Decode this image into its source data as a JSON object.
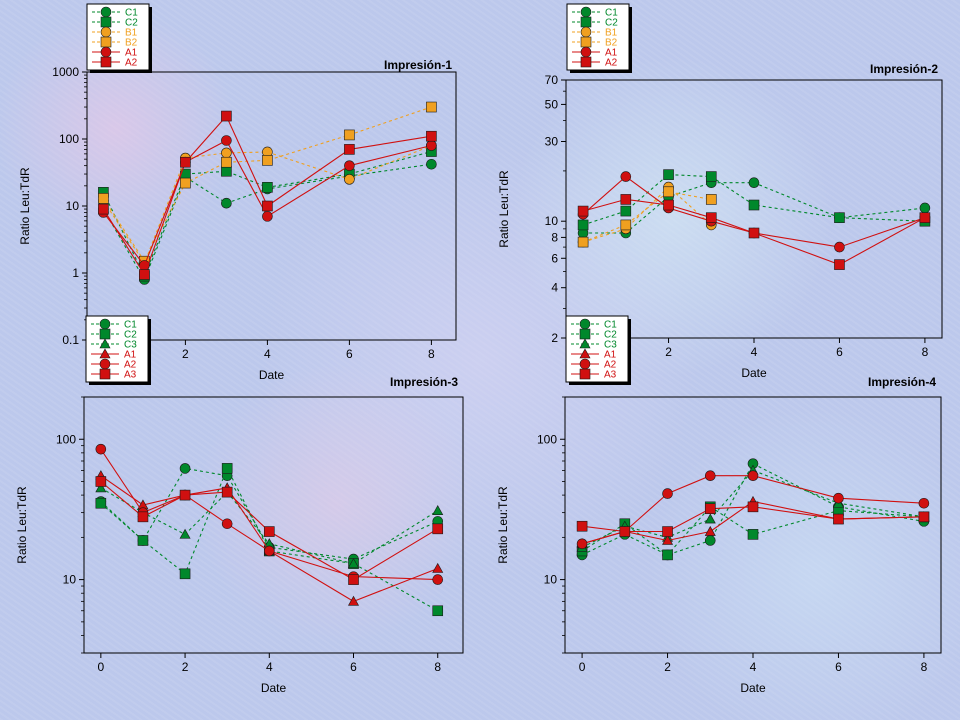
{
  "chart_data": [
    {
      "type": "line",
      "title": "Impresión-1",
      "xlabel": "Date",
      "ylabel": "Ratio Leu:TdR",
      "xlim": [
        -0.4,
        8.6
      ],
      "xticks": [
        0,
        2,
        4,
        6,
        8
      ],
      "ylim": [
        0.1,
        1000
      ],
      "yscale": "log",
      "yticks": [
        0.1,
        1,
        10,
        100,
        1000
      ],
      "ytick_labels": [
        "0.1",
        "1",
        "10",
        "100",
        "1000"
      ],
      "grid": false,
      "legend_position": "top-left, above plot",
      "series": [
        {
          "name": "C1",
          "color": "#00882b",
          "marker": "circle",
          "dash": true,
          "x": [
            0,
            1,
            2,
            3,
            4,
            6,
            8
          ],
          "y": [
            9,
            0.8,
            27,
            11,
            18,
            28,
            42
          ]
        },
        {
          "name": "C2",
          "color": "#00882b",
          "marker": "square",
          "dash": true,
          "x": [
            0,
            1,
            2,
            3,
            4,
            6,
            8
          ],
          "y": [
            16,
            0.9,
            30,
            33,
            19,
            30,
            65
          ]
        },
        {
          "name": "B1",
          "color": "#f0a020",
          "marker": "circle",
          "dash": true,
          "x": [
            0,
            1,
            2,
            3,
            4,
            6,
            8
          ],
          "y": [
            12,
            1.4,
            52,
            62,
            64,
            25,
            80
          ]
        },
        {
          "name": "B2",
          "color": "#f0a020",
          "marker": "square",
          "dash": true,
          "x": [
            0,
            1,
            2,
            3,
            4,
            6,
            8
          ],
          "y": [
            13,
            1.5,
            22,
            45,
            48,
            115,
            300
          ]
        },
        {
          "name": "A1",
          "color": "#d01010",
          "marker": "circle",
          "dash": false,
          "x": [
            0,
            1,
            2,
            3,
            4,
            6,
            8
          ],
          "y": [
            8,
            1.3,
            45,
            95,
            7,
            40,
            80
          ]
        },
        {
          "name": "A2",
          "color": "#d01010",
          "marker": "square",
          "dash": false,
          "x": [
            0,
            1,
            2,
            3,
            4,
            6,
            8
          ],
          "y": [
            9,
            0.95,
            45,
            220,
            10,
            70,
            110
          ]
        }
      ]
    },
    {
      "type": "line",
      "title": "Impresión-2",
      "xlabel": "Date",
      "ylabel": "Ratio Leu:TdR",
      "xlim": [
        -0.4,
        8.4
      ],
      "xticks": [
        0,
        2,
        4,
        6,
        8
      ],
      "ylim": [
        2,
        70
      ],
      "yscale": "log",
      "yticks": [
        2,
        4,
        6,
        8,
        10,
        30,
        50,
        70
      ],
      "ytick_labels": [
        "2",
        "4",
        "6",
        "8",
        "10",
        "30",
        "50",
        "70"
      ],
      "grid": false,
      "legend_position": "top-left, above plot",
      "series": [
        {
          "name": "C1",
          "color": "#00882b",
          "marker": "circle",
          "dash": true,
          "x": [
            0,
            1,
            2,
            3,
            4,
            6,
            8
          ],
          "y": [
            8.5,
            8.5,
            14,
            17,
            17,
            10.5,
            12
          ]
        },
        {
          "name": "C2",
          "color": "#00882b",
          "marker": "square",
          "dash": true,
          "x": [
            0,
            1,
            2,
            3,
            4,
            6,
            8
          ],
          "y": [
            9.5,
            11.5,
            19,
            18.5,
            12.5,
            10.5,
            10
          ]
        },
        {
          "name": "B1",
          "color": "#f0a020",
          "marker": "circle",
          "dash": true,
          "x": [
            0,
            1,
            2,
            3
          ],
          "y": [
            7.5,
            9,
            16,
            9.5
          ]
        },
        {
          "name": "B2",
          "color": "#f0a020",
          "marker": "square",
          "dash": true,
          "x": [
            0,
            1,
            2,
            3
          ],
          "y": [
            7.5,
            9.5,
            15,
            13.5
          ]
        },
        {
          "name": "A1",
          "color": "#d01010",
          "marker": "circle",
          "dash": false,
          "x": [
            0,
            1,
            2,
            3,
            4,
            6,
            8
          ],
          "y": [
            11,
            18.5,
            12,
            10,
            8.5,
            7,
            10.5
          ]
        },
        {
          "name": "A2",
          "color": "#d01010",
          "marker": "square",
          "dash": false,
          "x": [
            0,
            1,
            2,
            3,
            4,
            6,
            8
          ],
          "y": [
            11.5,
            13.5,
            12.5,
            10.5,
            8.5,
            5.5,
            10.5
          ]
        }
      ]
    },
    {
      "type": "line",
      "title": "Impresión-3",
      "xlabel": "Date",
      "ylabel": "Ratio Leu:TdR",
      "xlim": [
        -0.4,
        8.6
      ],
      "xticks": [
        0,
        2,
        4,
        6,
        8
      ],
      "ylim": [
        3,
        200
      ],
      "yscale": "log",
      "yticks": [
        10,
        100
      ],
      "ytick_labels": [
        "10",
        "100"
      ],
      "grid": false,
      "legend_position": "top-left, above plot",
      "series": [
        {
          "name": "C1",
          "color": "#00882b",
          "marker": "circle",
          "dash": true,
          "x": [
            0,
            1,
            2,
            3,
            4,
            6,
            8
          ],
          "y": [
            36,
            19,
            62,
            55,
            17,
            14,
            26
          ]
        },
        {
          "name": "C2",
          "color": "#00882b",
          "marker": "square",
          "dash": true,
          "x": [
            0,
            1,
            2,
            3,
            4,
            6,
            8
          ],
          "y": [
            35,
            19,
            11,
            62,
            16,
            13,
            6
          ]
        },
        {
          "name": "C3",
          "color": "#00882b",
          "marker": "triangle",
          "dash": true,
          "x": [
            0,
            1,
            2,
            3,
            4,
            6,
            8
          ],
          "y": [
            45,
            30,
            21,
            42,
            18,
            13,
            31
          ]
        },
        {
          "name": "A1",
          "color": "#d01010",
          "marker": "triangle",
          "dash": false,
          "x": [
            0,
            1,
            2,
            3,
            4,
            6,
            8
          ],
          "y": [
            55,
            34,
            40,
            45,
            16,
            7,
            12
          ]
        },
        {
          "name": "A2",
          "color": "#d01010",
          "marker": "circle",
          "dash": false,
          "x": [
            0,
            1,
            2,
            3,
            4,
            6,
            8
          ],
          "y": [
            85,
            30,
            40,
            25,
            16,
            10.5,
            10
          ]
        },
        {
          "name": "A3",
          "color": "#d01010",
          "marker": "square",
          "dash": false,
          "x": [
            0,
            1,
            2,
            3,
            4,
            6,
            8
          ],
          "y": [
            50,
            28,
            40,
            42,
            22,
            10,
            23
          ]
        }
      ]
    },
    {
      "type": "line",
      "title": "Impresión-4",
      "xlabel": "Date",
      "ylabel": "Ratio Leu:TdR",
      "xlim": [
        -0.4,
        8.4
      ],
      "xticks": [
        0,
        2,
        4,
        6,
        8
      ],
      "ylim": [
        3,
        200
      ],
      "yscale": "log",
      "yticks": [
        10,
        100
      ],
      "ytick_labels": [
        "10",
        "100"
      ],
      "grid": false,
      "legend_position": "top-left, above plot",
      "series": [
        {
          "name": "C1",
          "color": "#00882b",
          "marker": "circle",
          "dash": true,
          "x": [
            0,
            1,
            2,
            3,
            4,
            6,
            8
          ],
          "y": [
            15,
            21,
            15,
            19,
            67,
            33,
            26
          ]
        },
        {
          "name": "C2",
          "color": "#00882b",
          "marker": "square",
          "dash": true,
          "x": [
            0,
            1,
            2,
            3,
            4,
            6,
            8
          ],
          "y": [
            16,
            25,
            15,
            33,
            21,
            31,
            28
          ]
        },
        {
          "name": "C3",
          "color": "#00882b",
          "marker": "triangle",
          "dash": true,
          "x": [
            0,
            1,
            2,
            3,
            4,
            6,
            8
          ],
          "y": [
            17,
            24,
            20,
            27,
            60,
            35,
            28
          ]
        },
        {
          "name": "A1",
          "color": "#d01010",
          "marker": "triangle",
          "dash": false,
          "x": [
            0,
            1,
            2,
            3,
            4,
            6,
            8
          ],
          "y": [
            18,
            22,
            19,
            22,
            36,
            27,
            28
          ]
        },
        {
          "name": "A2",
          "color": "#d01010",
          "marker": "circle",
          "dash": false,
          "x": [
            0,
            1,
            2,
            3,
            4,
            6,
            8
          ],
          "y": [
            18,
            22,
            41,
            55,
            55,
            38,
            35
          ]
        },
        {
          "name": "A3",
          "color": "#d01010",
          "marker": "square",
          "dash": false,
          "x": [
            0,
            1,
            2,
            3,
            4,
            6,
            8
          ],
          "y": [
            24,
            22,
            22,
            32,
            33,
            27,
            28
          ]
        }
      ]
    }
  ]
}
